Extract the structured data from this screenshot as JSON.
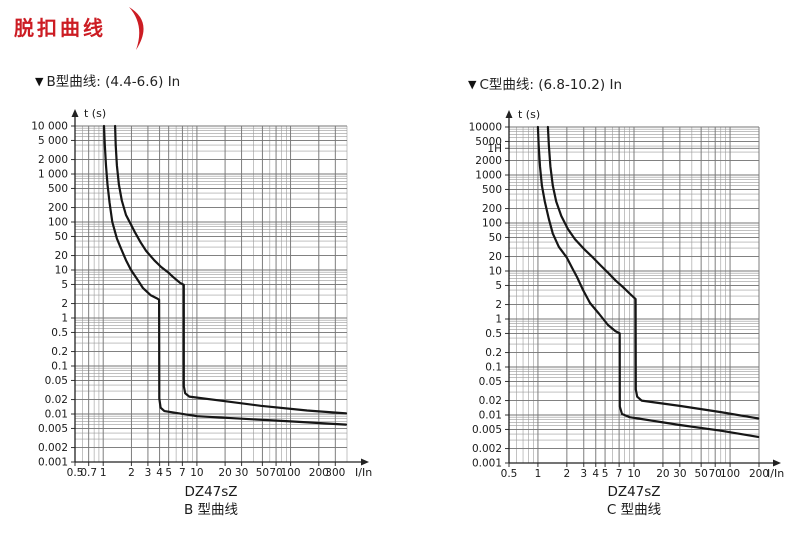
{
  "header": {
    "title": "脱扣曲线",
    "accent": "#cc1c23"
  },
  "chart_data": [
    {
      "type": "line",
      "heading_marker": "▼",
      "heading": "B型曲线: (4.4-6.6) In",
      "caption_line1": "DZ47sZ",
      "caption_line2": "B 型曲线",
      "curve_color": "#161616",
      "grid": "log-minor",
      "legend": "none",
      "x_axis": {
        "label": "I/In",
        "scale": "log",
        "min": 0.5,
        "max": 400,
        "ticks": [
          {
            "v": 0.5,
            "t": "0.5"
          },
          {
            "v": 0.7,
            "t": "0.7"
          },
          {
            "v": 1,
            "t": "1"
          },
          {
            "v": 2,
            "t": "2"
          },
          {
            "v": 3,
            "t": "3"
          },
          {
            "v": 4,
            "t": "4"
          },
          {
            "v": 5,
            "t": "5"
          },
          {
            "v": 7,
            "t": "7"
          },
          {
            "v": 10,
            "t": "10"
          },
          {
            "v": 20,
            "t": "20"
          },
          {
            "v": 30,
            "t": "30"
          },
          {
            "v": 50,
            "t": "50"
          },
          {
            "v": 70,
            "t": "70"
          },
          {
            "v": 100,
            "t": "100"
          },
          {
            "v": 200,
            "t": "200"
          },
          {
            "v": 300,
            "t": "300"
          }
        ]
      },
      "y_axis": {
        "label": "t (s)",
        "scale": "log",
        "min": 0.001,
        "max": 10000,
        "ticks": [
          {
            "v": 10000,
            "t": "10 000"
          },
          {
            "v": 5000,
            "t": "5 000"
          },
          {
            "v": 2000,
            "t": "2 000"
          },
          {
            "v": 1000,
            "t": "1 000"
          },
          {
            "v": 500,
            "t": "500"
          },
          {
            "v": 200,
            "t": "200"
          },
          {
            "v": 100,
            "t": "100"
          },
          {
            "v": 50,
            "t": "50"
          },
          {
            "v": 20,
            "t": "20"
          },
          {
            "v": 10,
            "t": "10"
          },
          {
            "v": 5,
            "t": "5"
          },
          {
            "v": 2,
            "t": "2"
          },
          {
            "v": 1,
            "t": "1"
          },
          {
            "v": 0.5,
            "t": "0.5"
          },
          {
            "v": 0.2,
            "t": "0.2"
          },
          {
            "v": 0.1,
            "t": "0.1"
          },
          {
            "v": 0.05,
            "t": "0.05"
          },
          {
            "v": 0.02,
            "t": "0.02"
          },
          {
            "v": 0.01,
            "t": "0.01"
          },
          {
            "v": 0.005,
            "t": "0.005"
          },
          {
            "v": 0.002,
            "t": "0.002"
          },
          {
            "v": 0.001,
            "t": "0.001"
          }
        ]
      },
      "series": [
        {
          "name": "trip-band-lower-boundary",
          "points": [
            [
              1.02,
              10000
            ],
            [
              1.04,
              4000
            ],
            [
              1.07,
              1500
            ],
            [
              1.11,
              600
            ],
            [
              1.17,
              250
            ],
            [
              1.25,
              100
            ],
            [
              1.4,
              45
            ],
            [
              1.55,
              28
            ],
            [
              1.75,
              16
            ],
            [
              1.98,
              10
            ],
            [
              2.3,
              6.5
            ],
            [
              2.66,
              4.2
            ],
            [
              3.2,
              3.0
            ],
            [
              3.7,
              2.6
            ],
            [
              3.95,
              2.4
            ],
            [
              3.97,
              0.021
            ],
            [
              4.1,
              0.0135
            ],
            [
              4.5,
              0.0115
            ],
            [
              10,
              0.009
            ],
            [
              30,
              0.008
            ],
            [
              100,
              0.007
            ],
            [
              390,
              0.006
            ]
          ]
        },
        {
          "name": "trip-band-upper-boundary",
          "points": [
            [
              1.34,
              10000
            ],
            [
              1.36,
              4000
            ],
            [
              1.4,
              1500
            ],
            [
              1.47,
              600
            ],
            [
              1.58,
              280
            ],
            [
              1.75,
              140
            ],
            [
              2.0,
              85
            ],
            [
              2.19,
              60
            ],
            [
              2.5,
              38
            ],
            [
              2.87,
              25
            ],
            [
              3.5,
              16
            ],
            [
              4.14,
              11.6
            ],
            [
              4.9,
              9.0
            ],
            [
              5.55,
              7.2
            ],
            [
              6.6,
              5.4
            ],
            [
              7.25,
              4.9
            ],
            [
              7.25,
              0.038
            ],
            [
              7.5,
              0.027
            ],
            [
              8.3,
              0.023
            ],
            [
              20,
              0.0185
            ],
            [
              48,
              0.0148
            ],
            [
              150,
              0.0118
            ],
            [
              390,
              0.0103
            ]
          ]
        }
      ]
    },
    {
      "type": "line",
      "heading_marker": "▼",
      "heading": "C型曲线: (6.8-10.2) In",
      "caption_line1": "DZ47sZ",
      "caption_line2": "C 型曲线",
      "curve_color": "#161616",
      "grid": "log-minor",
      "legend": "none",
      "x_axis": {
        "label": "I/In",
        "scale": "log",
        "min": 0.5,
        "max": 200,
        "ticks": [
          {
            "v": 0.5,
            "t": "0.5"
          },
          {
            "v": 1,
            "t": "1"
          },
          {
            "v": 2,
            "t": "2"
          },
          {
            "v": 3,
            "t": "3"
          },
          {
            "v": 4,
            "t": "4"
          },
          {
            "v": 5,
            "t": "5"
          },
          {
            "v": 7,
            "t": "7"
          },
          {
            "v": 10,
            "t": "10"
          },
          {
            "v": 20,
            "t": "20"
          },
          {
            "v": 30,
            "t": "30"
          },
          {
            "v": 50,
            "t": "50"
          },
          {
            "v": 70,
            "t": "70"
          },
          {
            "v": 100,
            "t": "100"
          },
          {
            "v": 200,
            "t": "200"
          }
        ]
      },
      "y_axis": {
        "label": "t (s)",
        "scale": "log",
        "min": 0.001,
        "max": 10000,
        "ticks": [
          {
            "v": 10000,
            "t": "10000"
          },
          {
            "v": 5000,
            "t": "5000"
          },
          {
            "v": 3600,
            "t": "1H"
          },
          {
            "v": 2000,
            "t": "2000"
          },
          {
            "v": 1000,
            "t": "1000"
          },
          {
            "v": 500,
            "t": "500"
          },
          {
            "v": 200,
            "t": "200"
          },
          {
            "v": 100,
            "t": "100"
          },
          {
            "v": 50,
            "t": "50"
          },
          {
            "v": 20,
            "t": "20"
          },
          {
            "v": 10,
            "t": "10"
          },
          {
            "v": 5,
            "t": "5"
          },
          {
            "v": 2,
            "t": "2"
          },
          {
            "v": 1,
            "t": "1"
          },
          {
            "v": 0.5,
            "t": "0.5"
          },
          {
            "v": 0.2,
            "t": "0.2"
          },
          {
            "v": 0.1,
            "t": "0.1"
          },
          {
            "v": 0.05,
            "t": "0.05"
          },
          {
            "v": 0.02,
            "t": "0.02"
          },
          {
            "v": 0.01,
            "t": "0.01"
          },
          {
            "v": 0.005,
            "t": "0.005"
          },
          {
            "v": 0.002,
            "t": "0.002"
          },
          {
            "v": 0.001,
            "t": "0.001"
          }
        ]
      },
      "series": [
        {
          "name": "trip-band-lower-boundary",
          "points": [
            [
              1.0,
              10000
            ],
            [
              1.02,
              4000
            ],
            [
              1.05,
              1500
            ],
            [
              1.1,
              600
            ],
            [
              1.18,
              280
            ],
            [
              1.3,
              120
            ],
            [
              1.43,
              60
            ],
            [
              1.65,
              32
            ],
            [
              2.0,
              19
            ],
            [
              2.3,
              11
            ],
            [
              2.55,
              7.5
            ],
            [
              2.95,
              4.0
            ],
            [
              3.48,
              2.15
            ],
            [
              4.3,
              1.3
            ],
            [
              5.36,
              0.75
            ],
            [
              6.4,
              0.56
            ],
            [
              7.1,
              0.5
            ],
            [
              7.12,
              0.015
            ],
            [
              7.5,
              0.0105
            ],
            [
              9,
              0.009
            ],
            [
              30,
              0.0062
            ],
            [
              80,
              0.0047
            ],
            [
              196,
              0.0035
            ]
          ]
        },
        {
          "name": "trip-band-upper-boundary",
          "points": [
            [
              1.27,
              10000
            ],
            [
              1.3,
              4000
            ],
            [
              1.35,
              1500
            ],
            [
              1.43,
              600
            ],
            [
              1.55,
              280
            ],
            [
              1.75,
              140
            ],
            [
              2.05,
              75
            ],
            [
              2.43,
              46
            ],
            [
              3.0,
              29
            ],
            [
              3.74,
              19
            ],
            [
              4.5,
              13
            ],
            [
              5.36,
              9.2
            ],
            [
              6.4,
              6.4
            ],
            [
              7.7,
              4.6
            ],
            [
              9.0,
              3.4
            ],
            [
              10.4,
              2.6
            ],
            [
              10.45,
              0.034
            ],
            [
              10.8,
              0.024
            ],
            [
              12,
              0.02
            ],
            [
              30,
              0.0155
            ],
            [
              80,
              0.0115
            ],
            [
              196,
              0.0085
            ]
          ]
        }
      ]
    }
  ]
}
